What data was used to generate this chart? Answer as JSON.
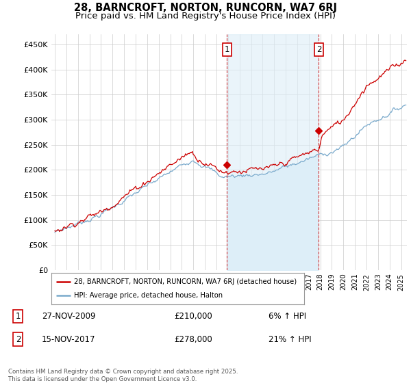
{
  "title_line1": "28, BARNCROFT, NORTON, RUNCORN, WA7 6RJ",
  "title_line2": "Price paid vs. HM Land Registry's House Price Index (HPI)",
  "ylim": [
    0,
    470000
  ],
  "yticks": [
    0,
    50000,
    100000,
    150000,
    200000,
    250000,
    300000,
    350000,
    400000,
    450000
  ],
  "ytick_labels": [
    "£0",
    "£50K",
    "£100K",
    "£150K",
    "£200K",
    "£250K",
    "£300K",
    "£350K",
    "£400K",
    "£450K"
  ],
  "legend_label_red": "28, BARNCROFT, NORTON, RUNCORN, WA7 6RJ (detached house)",
  "legend_label_blue": "HPI: Average price, detached house, Halton",
  "red_color": "#cc0000",
  "blue_color": "#7aaacc",
  "blue_fill_color": "#ddeef8",
  "marker1_date_str": "27-NOV-2009",
  "marker1_price": 210000,
  "marker1_pct": "6%",
  "marker2_date_str": "15-NOV-2017",
  "marker2_price": 278000,
  "marker2_pct": "21%",
  "footer_text": "Contains HM Land Registry data © Crown copyright and database right 2025.\nThis data is licensed under the Open Government Licence v3.0.",
  "background_color": "#ffffff",
  "grid_color": "#cccccc",
  "title_fontsize": 10.5,
  "subtitle_fontsize": 9.5
}
